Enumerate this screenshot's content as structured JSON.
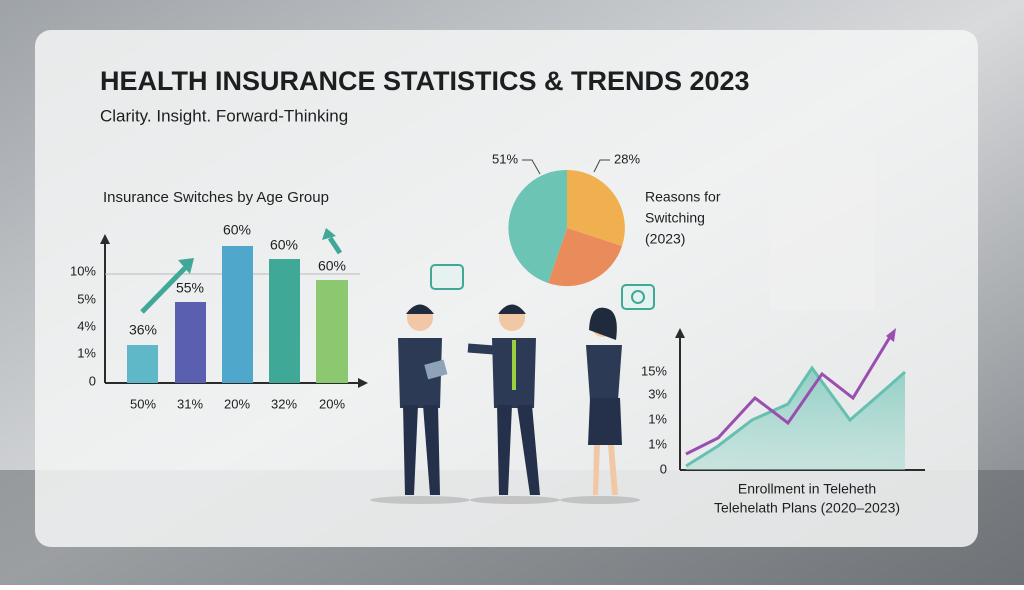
{
  "header": {
    "title": "HEALTH INSURANCE STATISTICS & TRENDS 2023",
    "subtitle": "Clarity. Insight. Forward-Thinking"
  },
  "bar_panel": {
    "title": "Insurance Switches by Age Group",
    "y_labels": [
      "10%",
      "5%",
      "4%",
      "1%",
      "0"
    ],
    "bar_labels": [
      "36%",
      "55%",
      "60%",
      "60%",
      "60%"
    ],
    "x_labels": [
      "50%",
      "31%",
      "20%",
      "32%",
      "20%"
    ]
  },
  "pie_panel": {
    "labels": [
      "51%",
      "28%"
    ],
    "caption": [
      "Reasons for",
      "Switching",
      "(2023)"
    ]
  },
  "line_panel": {
    "y_labels": [
      "15%",
      "3%",
      "1%",
      "1%",
      "0"
    ],
    "caption": [
      "Enrollment in Teleheth",
      "Telehelath Plans (2020–2023)"
    ]
  }
}
